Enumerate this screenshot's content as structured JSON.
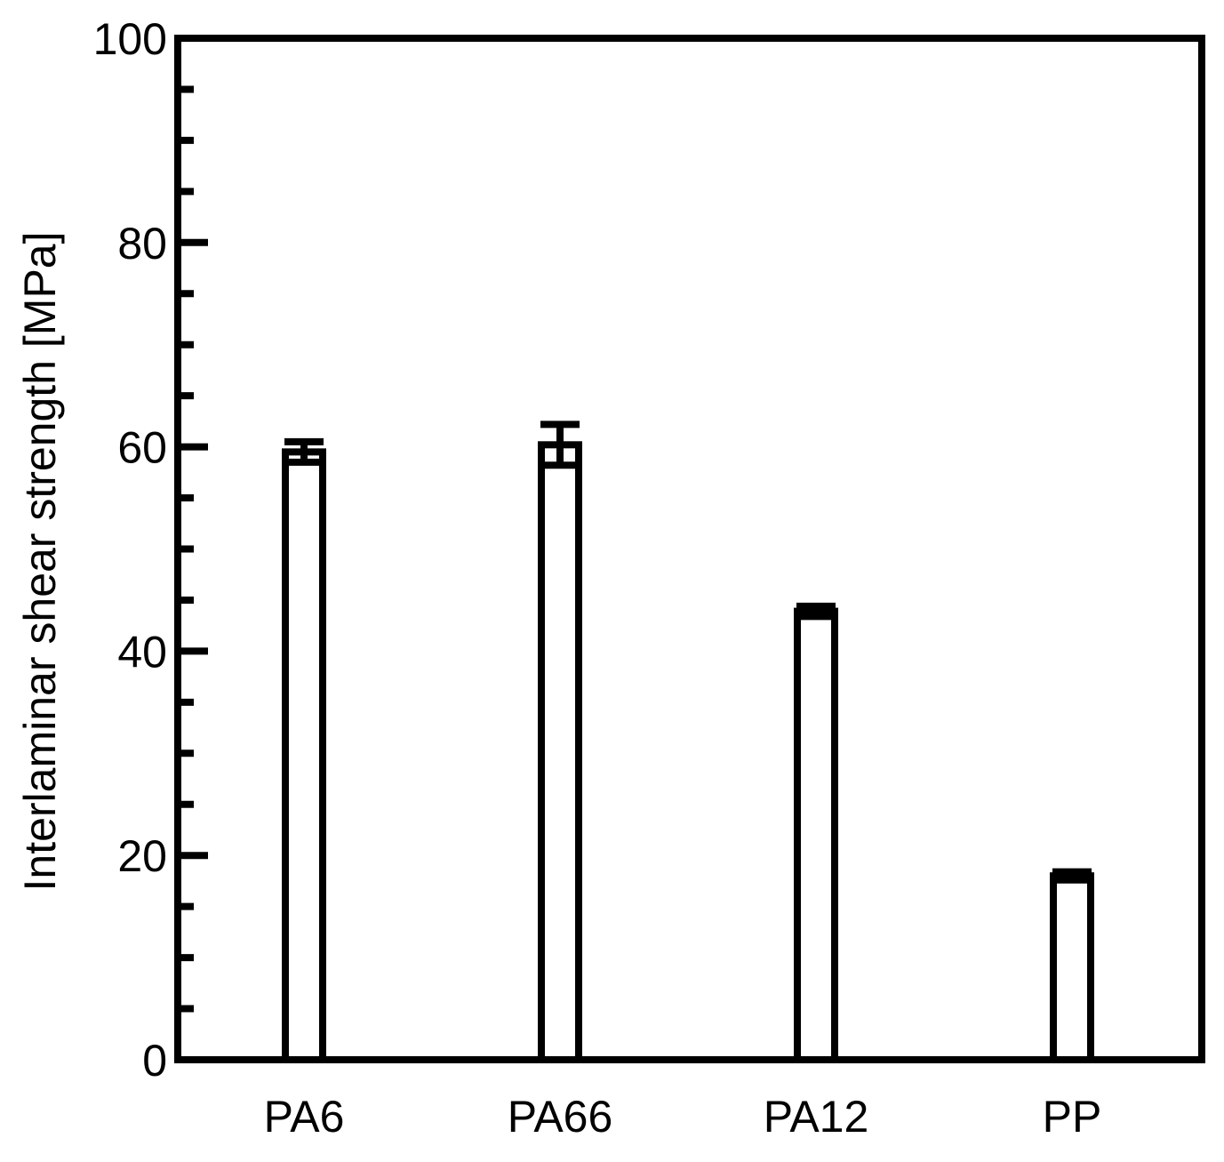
{
  "chart_data": {
    "type": "bar",
    "title": "",
    "xlabel": "",
    "ylabel": "Interlaminar shear strength [MPa]",
    "categories": [
      "PA6",
      "PA66",
      "PA12",
      "PP"
    ],
    "values": [
      59.5,
      60.2,
      43.9,
      18.0
    ],
    "errors": [
      1.0,
      2.0,
      0.5,
      0.4
    ],
    "ylim": [
      0,
      100
    ],
    "yticks": [
      0,
      20,
      40,
      60,
      80,
      100
    ],
    "ytick_labels": [
      "0",
      "20",
      "40",
      "60",
      "80",
      "100"
    ],
    "minor_tick_step": 5,
    "grid": false,
    "legend": "none",
    "bar_fill": "#ffffff",
    "bar_edge": "#000000",
    "axis_color": "#000000"
  }
}
